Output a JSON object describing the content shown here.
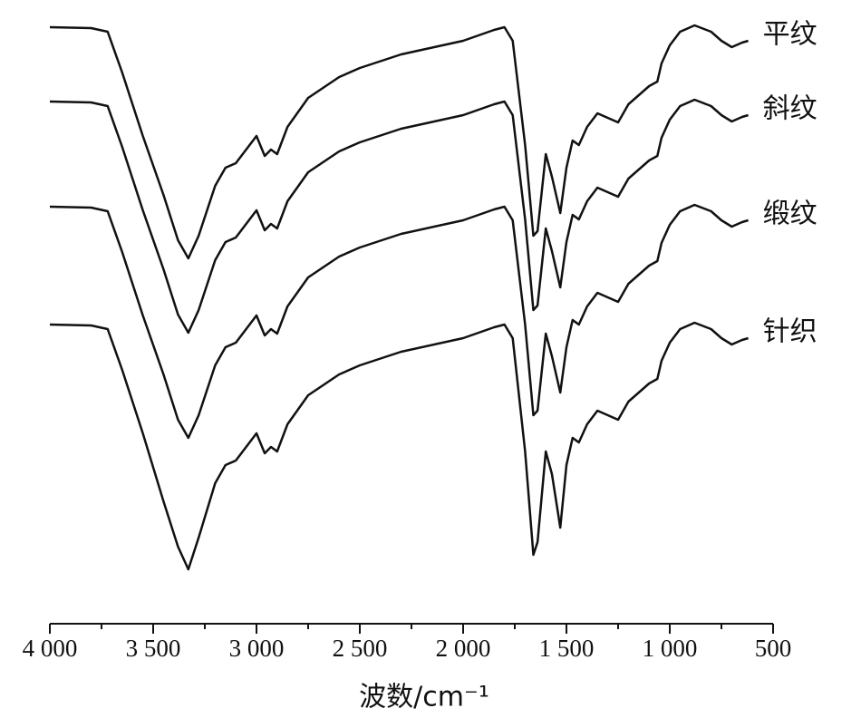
{
  "chart_data": {
    "type": "line",
    "xlabel": "波数/cm⁻¹",
    "x": [
      4000,
      3800,
      3720,
      3650,
      3550,
      3450,
      3380,
      3330,
      3280,
      3200,
      3150,
      3100,
      3050,
      3000,
      2960,
      2930,
      2900,
      2850,
      2750,
      2600,
      2500,
      2300,
      2000,
      1850,
      1800,
      1760,
      1700,
      1660,
      1640,
      1600,
      1570,
      1530,
      1500,
      1470,
      1440,
      1400,
      1350,
      1300,
      1250,
      1200,
      1100,
      1060,
      1040,
      1000,
      950,
      880,
      800,
      750,
      700,
      650,
      620
    ],
    "series": [
      {
        "name": "平纹",
        "color": "#111111",
        "values": [
          658,
          657,
          653,
          608,
          538,
          473,
          423,
          403,
          428,
          483,
          503,
          508,
          523,
          538,
          516,
          523,
          518,
          548,
          580,
          603,
          613,
          628,
          643,
          655,
          658,
          643,
          528,
          428,
          433,
          518,
          493,
          453,
          503,
          533,
          528,
          548,
          563,
          558,
          553,
          573,
          593,
          598,
          618,
          638,
          653,
          660,
          653,
          643,
          636,
          641,
          643
        ]
      },
      {
        "name": "斜纹",
        "color": "#111111",
        "values": [
          576,
          575,
          571,
          526,
          456,
          391,
          341,
          321,
          346,
          401,
          421,
          426,
          441,
          456,
          434,
          441,
          436,
          466,
          498,
          521,
          531,
          546,
          561,
          573,
          576,
          561,
          446,
          346,
          351,
          436,
          411,
          371,
          421,
          451,
          446,
          466,
          481,
          476,
          471,
          491,
          511,
          516,
          536,
          556,
          571,
          578,
          571,
          561,
          554,
          559,
          561
        ]
      },
      {
        "name": "缎纹",
        "color": "#111111",
        "values": [
          460,
          459,
          455,
          410,
          340,
          275,
          225,
          205,
          230,
          285,
          305,
          310,
          325,
          340,
          318,
          325,
          320,
          350,
          382,
          405,
          415,
          430,
          445,
          457,
          460,
          445,
          330,
          230,
          235,
          320,
          295,
          255,
          305,
          335,
          330,
          350,
          365,
          360,
          355,
          375,
          395,
          400,
          420,
          440,
          455,
          462,
          455,
          445,
          438,
          443,
          445
        ]
      },
      {
        "name": "针织",
        "color": "#111111",
        "values": [
          330,
          329,
          325,
          280,
          210,
          135,
          85,
          60,
          95,
          155,
          175,
          180,
          195,
          210,
          188,
          195,
          190,
          220,
          252,
          275,
          285,
          300,
          315,
          327,
          330,
          315,
          190,
          76,
          90,
          190,
          165,
          106,
          175,
          205,
          200,
          220,
          235,
          230,
          225,
          245,
          265,
          270,
          290,
          310,
          325,
          332,
          325,
          315,
          308,
          313,
          315
        ]
      }
    ],
    "xlim": [
      4000,
      500
    ],
    "xticks": [
      {
        "value": 4000,
        "label": "4 000"
      },
      {
        "value": 3500,
        "label": "3 500"
      },
      {
        "value": 3000,
        "label": "3 000"
      },
      {
        "value": 2500,
        "label": "2 500"
      },
      {
        "value": 2000,
        "label": "2 000"
      },
      {
        "value": 1500,
        "label": "1 500"
      },
      {
        "value": 1000,
        "label": "1 000"
      },
      500
    ],
    "xminorticks": [
      3750,
      3250,
      2750,
      2250,
      1750,
      1250,
      750
    ],
    "ylim": [
      0,
      688
    ]
  }
}
